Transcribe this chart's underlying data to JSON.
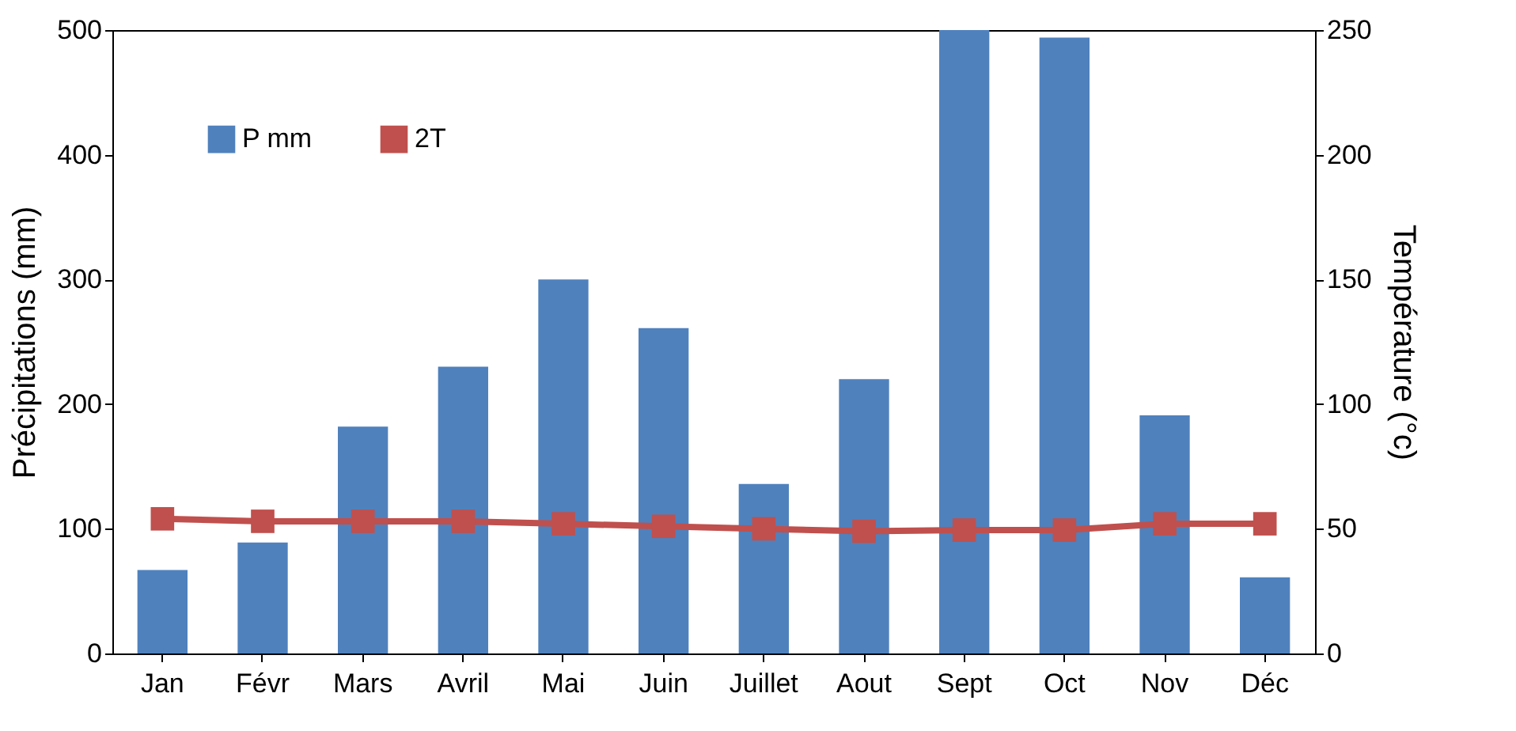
{
  "chart_data": {
    "type": "bar",
    "categories": [
      "Jan",
      "Févr",
      "Mars",
      "Avril",
      "Mai",
      "Juin",
      "Juillet",
      "Aout",
      "Sept",
      "Oct",
      "Nov",
      "Déc"
    ],
    "series": [
      {
        "name": "P mm",
        "color": "#4f81bd",
        "values": [
          67,
          89,
          182,
          230,
          300,
          261,
          136,
          220,
          500,
          494,
          191,
          61
        ]
      },
      {
        "name": "2T",
        "type": "line",
        "axis": "y2",
        "color": "#c0504d",
        "values": [
          54,
          53,
          53,
          53,
          52,
          51,
          50,
          49,
          49.5,
          49.5,
          52,
          52
        ]
      }
    ],
    "ylabel": "Précipitations (mm)",
    "y2label": "Température (°c)",
    "ylim": [
      0,
      500
    ],
    "yticks": [
      0,
      100,
      200,
      300,
      400,
      500
    ],
    "y2lim": [
      0,
      250
    ],
    "y2ticks": [
      0,
      50,
      100,
      150,
      200,
      250
    ],
    "legend": "top left",
    "marker": "square",
    "line_style": "solid"
  }
}
